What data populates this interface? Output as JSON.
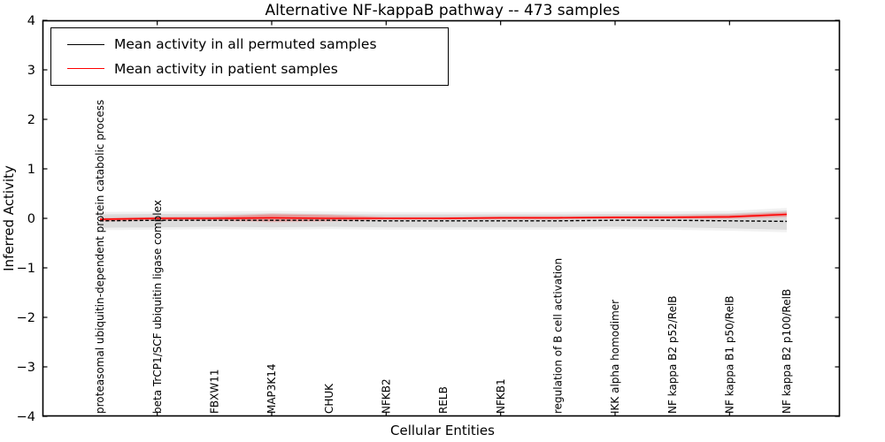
{
  "figure": {
    "title": "Alternative NF-kappaB pathway -- 473 samples",
    "xlabel": "Cellular Entities",
    "ylabel": "Inferred Activity"
  },
  "legend": {
    "entries": [
      {
        "label": "Mean activity in all permuted samples",
        "color": "#000000"
      },
      {
        "label": "Mean activity in patient samples",
        "color": "#ff0000"
      }
    ]
  },
  "chart_data": {
    "type": "line",
    "title": "Alternative NF-kappaB pathway -- 473 samples",
    "xlabel": "Cellular Entities",
    "ylabel": "Inferred Activity",
    "ylim": [
      -4,
      4
    ],
    "yticks": [
      -4,
      -3,
      -2,
      -1,
      0,
      1,
      2,
      3,
      4
    ],
    "grid": false,
    "legend_position": "upper left",
    "categories": [
      "proteasomal ubiquitin-dependent protein catabolic process",
      "beta TrCP1/SCF ubiquitin ligase complex",
      "FBXW11",
      "MAP3K14",
      "CHUK",
      "NFKB2",
      "RELB",
      "NFKB1",
      "regulation of B cell activation",
      "IKK alpha homodimer",
      "NF kappa B2 p52/RelB",
      "NF kappa B1 p50/RelB",
      "NF kappa B2 p100/RelB"
    ],
    "series": [
      {
        "name": "Mean activity in all permuted samples",
        "color": "#000000",
        "style": "dashed",
        "values": [
          -0.05,
          -0.04,
          -0.04,
          -0.04,
          -0.04,
          -0.05,
          -0.05,
          -0.05,
          -0.05,
          -0.04,
          -0.04,
          -0.05,
          -0.06
        ],
        "band_upper": [
          0.08,
          0.09,
          0.09,
          0.1,
          0.09,
          0.08,
          0.08,
          0.08,
          0.08,
          0.09,
          0.09,
          0.1,
          0.16
        ],
        "band_lower": [
          -0.19,
          -0.18,
          -0.17,
          -0.18,
          -0.17,
          -0.18,
          -0.18,
          -0.18,
          -0.18,
          -0.17,
          -0.18,
          -0.2,
          -0.23
        ],
        "band_color": "#d9d9d9"
      },
      {
        "name": "Mean activity in patient samples",
        "color": "#ff0000",
        "style": "solid",
        "values": [
          -0.02,
          0.0,
          0.0,
          0.01,
          0.0,
          0.0,
          0.0,
          0.01,
          0.01,
          0.02,
          0.02,
          0.03,
          0.08
        ],
        "band_upper": [
          0.0,
          0.02,
          0.03,
          0.08,
          0.06,
          0.02,
          0.02,
          0.03,
          0.03,
          0.04,
          0.05,
          0.07,
          0.12
        ],
        "band_lower": [
          -0.05,
          -0.03,
          -0.03,
          -0.06,
          -0.05,
          -0.02,
          -0.02,
          -0.01,
          -0.01,
          0.0,
          0.0,
          0.0,
          0.04
        ],
        "band_color": "#ff0000"
      }
    ]
  }
}
